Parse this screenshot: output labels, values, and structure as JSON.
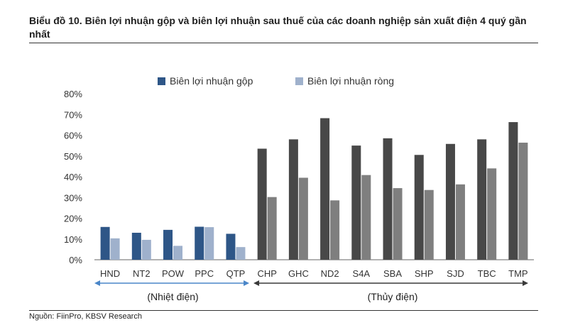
{
  "title": "Biểu đồ 10. Biên lợi nhuận gộp và biên lợi nhuận sau thuế của các doanh nghiệp sản xuất điện 4 quý gần nhất",
  "source": "Nguồn: FiinPro, KBSV Research",
  "groups": {
    "thermal": "(Nhiệt điện)",
    "hydro": "(Thủy điện)"
  },
  "colors": {
    "gross_thermal": "#2e5687",
    "net_thermal": "#9fb1cc",
    "gross_hydro": "#484848",
    "net_hydro": "#7f7f7f",
    "group_arrow_thermal": "#4a86c8",
    "group_arrow_hydro": "#3a3a3a"
  },
  "chart_data": {
    "type": "bar",
    "categories": [
      "HND",
      "NT2",
      "POW",
      "PPC",
      "QTP",
      "CHP",
      "GHC",
      "ND2",
      "S4A",
      "SBA",
      "SHP",
      "SJD",
      "TBC",
      "TMP"
    ],
    "series": [
      {
        "name": "Biên lợi nhuận gộp",
        "values": [
          15.8,
          13.0,
          14.4,
          15.9,
          12.5,
          53.5,
          58.0,
          68.2,
          55.0,
          58.5,
          50.5,
          55.8,
          58.0,
          66.3
        ]
      },
      {
        "name": "Biên lợi nhuận ròng",
        "values": [
          10.3,
          9.6,
          6.7,
          15.7,
          6.1,
          30.2,
          39.5,
          28.6,
          40.8,
          34.5,
          33.6,
          36.3,
          44.0,
          56.4
        ]
      }
    ],
    "ylim": [
      0,
      80
    ],
    "yticks": [
      "0%",
      "10%",
      "20%",
      "30%",
      "40%",
      "50%",
      "60%",
      "70%",
      "80%"
    ],
    "legend_position": "top",
    "grid": false
  }
}
